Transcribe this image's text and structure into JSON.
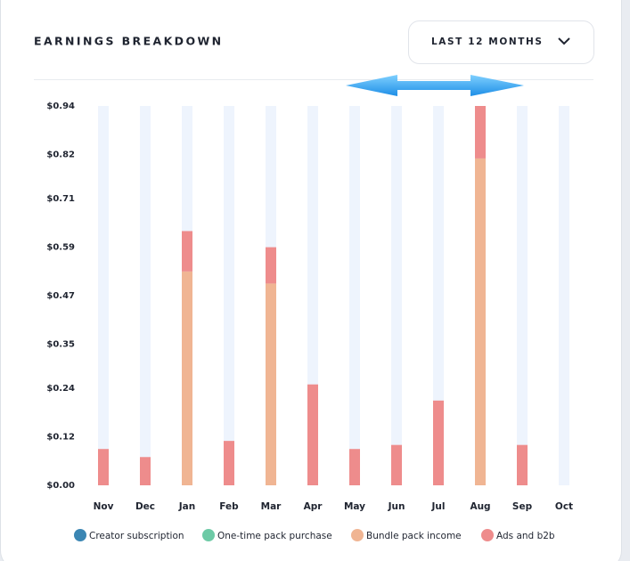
{
  "card": {
    "title": "EARNINGS BREAKDOWN",
    "dropdown": "LAST 12 MONTHS"
  },
  "chart_data": {
    "type": "stacked-bar",
    "categories": [
      "Nov",
      "Dec",
      "Jan",
      "Feb",
      "Mar",
      "Apr",
      "May",
      "Jun",
      "Jul",
      "Aug",
      "Sep",
      "Oct"
    ],
    "series": [
      {
        "name": "Creator subscription",
        "color": "#3b86b3",
        "values": [
          0,
          0,
          0,
          0,
          0,
          0,
          0,
          0,
          0,
          0,
          0,
          0
        ]
      },
      {
        "name": "One-time pack purchase",
        "color": "#6dcaa6",
        "values": [
          0,
          0,
          0,
          0,
          0,
          0,
          0,
          0,
          0,
          0,
          0,
          0
        ]
      },
      {
        "name": "Bundle pack income",
        "color": "#f0b593",
        "values": [
          0,
          0,
          0.53,
          0,
          0.5,
          0,
          0,
          0,
          0,
          0.81,
          0,
          0
        ]
      },
      {
        "name": "Ads and b2b",
        "color": "#ee8c8c",
        "values": [
          0.09,
          0.07,
          0.1,
          0.11,
          0.09,
          0.25,
          0.09,
          0.1,
          0.21,
          0.13,
          0.1,
          0
        ]
      }
    ],
    "ylim": [
      0,
      0.94
    ],
    "yticks": [
      {
        "value": 0,
        "label": "$0.00"
      },
      {
        "value": 0.12,
        "label": "$0.12"
      },
      {
        "value": 0.24,
        "label": "$0.24"
      },
      {
        "value": 0.35,
        "label": "$0.35"
      },
      {
        "value": 0.47,
        "label": "$0.47"
      },
      {
        "value": 0.59,
        "label": "$0.59"
      },
      {
        "value": 0.71,
        "label": "$0.71"
      },
      {
        "value": 0.82,
        "label": "$0.82"
      },
      {
        "value": 0.94,
        "label": "$0.94"
      }
    ],
    "track_color": "#eef4fd"
  }
}
